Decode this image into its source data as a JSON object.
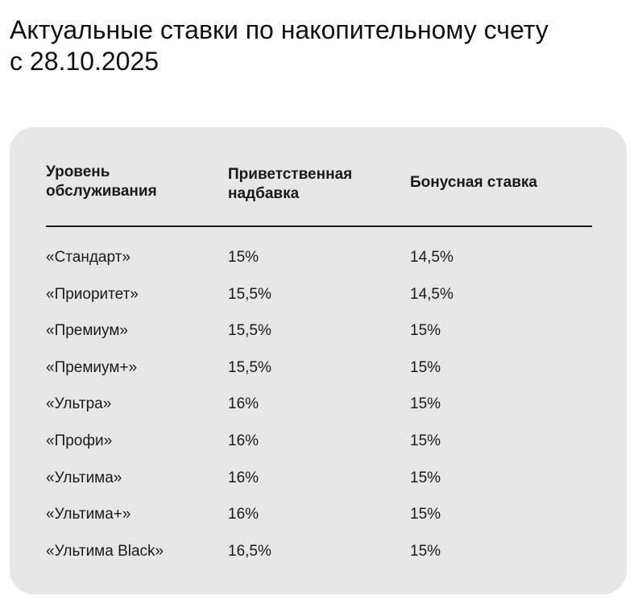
{
  "title": {
    "line1": "Актуальные ставки по накопительному счету",
    "line2": "с 28.10.2025"
  },
  "table": {
    "headers": [
      "Уровень обслуживания",
      "Приветственная надбавка",
      "Бонусная ставка"
    ],
    "header_lines": [
      [
        "Уровень",
        "обслуживания"
      ],
      [
        "Приветственная",
        "надбавка"
      ],
      [
        "Бонусная ставка"
      ]
    ],
    "rows": [
      [
        "«Стандарт»",
        "15%",
        "14,5%"
      ],
      [
        "«Приоритет»",
        "15,5%",
        "14,5%"
      ],
      [
        "«Премиум»",
        "15,5%",
        "15%"
      ],
      [
        "«Премиум+»",
        "15,5%",
        "15%"
      ],
      [
        "«Ультра»",
        "16%",
        "15%"
      ],
      [
        "«Профи»",
        "16%",
        "15%"
      ],
      [
        "«Ультима»",
        "16%",
        "15%"
      ],
      [
        "«Ультима+»",
        "16%",
        "15%"
      ],
      [
        "«Ультима Black»",
        "16,5%",
        "15%"
      ]
    ]
  },
  "colors": {
    "card_background": "#e6e6e6",
    "text": "#1a1a1a"
  }
}
